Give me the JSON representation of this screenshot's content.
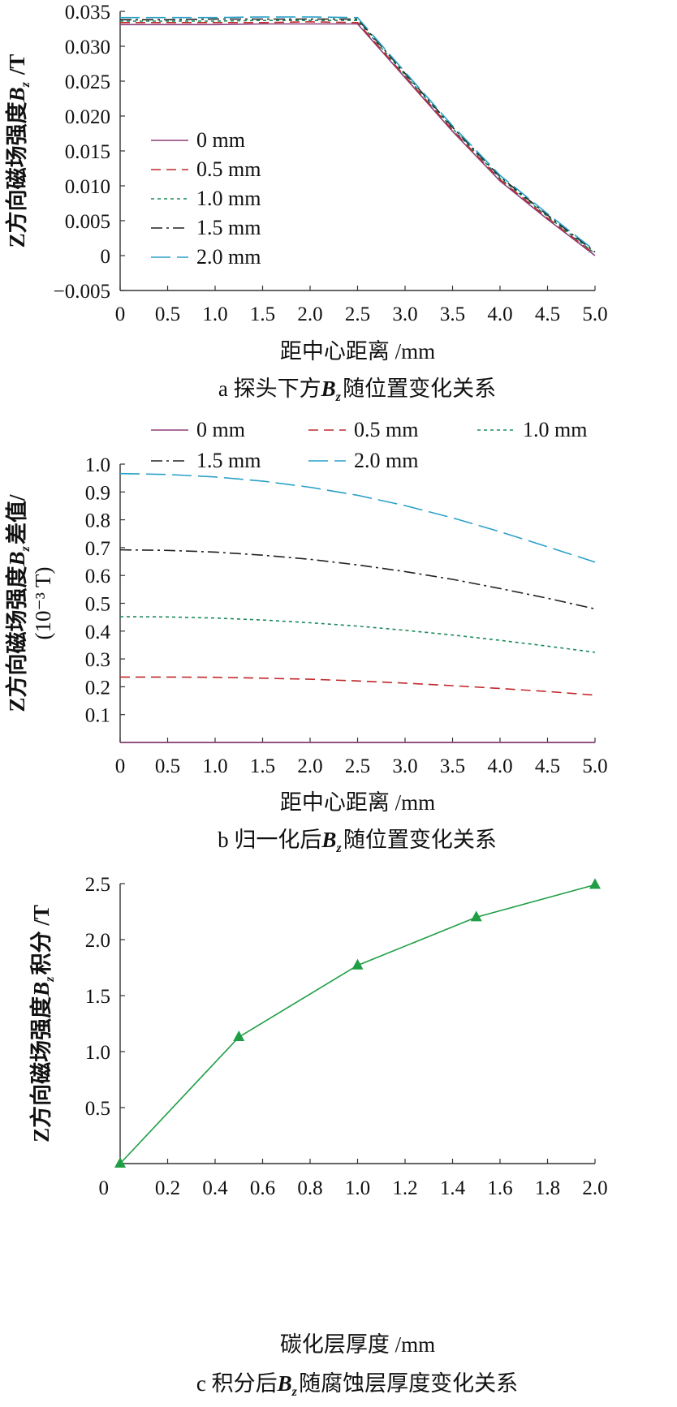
{
  "chart_data": [
    {
      "type": "line",
      "caption": "a 探头下方B_z随位置变化关系",
      "xlabel": "距中心距离 /mm",
      "ylabel": "Z方向磁场强度B_z /T",
      "xlim": [
        0,
        5
      ],
      "ylim": [
        -0.005,
        0.035
      ],
      "xticks": [
        0,
        0.5,
        1.0,
        1.5,
        2.0,
        2.5,
        3.0,
        3.5,
        4.0,
        4.5,
        5.0
      ],
      "yticks": [
        -0.005,
        0,
        0.005,
        0.01,
        0.015,
        0.02,
        0.025,
        0.03,
        0.035
      ],
      "xtick_labels": [
        "0",
        "0.5",
        "1.0",
        "1.5",
        "2.0",
        "2.5",
        "3.0",
        "3.5",
        "4.0",
        "4.5",
        "5.0"
      ],
      "ytick_labels": [
        "−0.005",
        "0",
        "0.005",
        "0.010",
        "0.015",
        "0.020",
        "0.025",
        "0.030",
        "0.035"
      ],
      "legend_position": "left",
      "series": [
        {
          "name": "0 mm",
          "color": "#8e3e7a",
          "dash": "solid",
          "x": [
            0,
            0.5,
            1.0,
            1.5,
            2.0,
            2.5,
            3.0,
            3.5,
            4.0,
            4.5,
            5.0
          ],
          "y": [
            0.0331,
            0.0331,
            0.0331,
            0.0332,
            0.0332,
            0.0332,
            0.0255,
            0.0178,
            0.0107,
            0.0052,
            0.0
          ]
        },
        {
          "name": "0.5 mm",
          "color": "#c0282b",
          "dash": "dashed",
          "x": [
            0,
            0.5,
            1.0,
            1.5,
            2.0,
            2.5,
            3.0,
            3.5,
            4.0,
            4.5,
            5.0
          ],
          "y": [
            0.0334,
            0.0334,
            0.0334,
            0.0334,
            0.0335,
            0.0334,
            0.0257,
            0.018,
            0.0109,
            0.0054,
            0.0002
          ]
        },
        {
          "name": "1.0 mm",
          "color": "#1a8a5a",
          "dash": "dotted",
          "x": [
            0,
            0.5,
            1.0,
            1.5,
            2.0,
            2.5,
            3.0,
            3.5,
            4.0,
            4.5,
            5.0
          ],
          "y": [
            0.0336,
            0.0336,
            0.0336,
            0.0337,
            0.0337,
            0.0337,
            0.0259,
            0.0182,
            0.0111,
            0.0056,
            0.0003
          ]
        },
        {
          "name": "1.5 mm",
          "color": "#222222",
          "dash": "dashdot",
          "x": [
            0,
            0.5,
            1.0,
            1.5,
            2.0,
            2.5,
            3.0,
            3.5,
            4.0,
            4.5,
            5.0
          ],
          "y": [
            0.0338,
            0.0338,
            0.0339,
            0.0339,
            0.0339,
            0.0339,
            0.0261,
            0.0184,
            0.0113,
            0.0058,
            0.0005
          ]
        },
        {
          "name": "2.0 mm",
          "color": "#2aa0c8",
          "dash": "longdash",
          "x": [
            0,
            0.5,
            1.0,
            1.5,
            2.0,
            2.5,
            3.0,
            3.5,
            4.0,
            4.5,
            5.0
          ],
          "y": [
            0.0341,
            0.0341,
            0.0341,
            0.0342,
            0.0342,
            0.0341,
            0.0263,
            0.0186,
            0.0115,
            0.006,
            0.0007
          ]
        }
      ]
    },
    {
      "type": "line",
      "caption": "b 归一化后B_z随位置变化关系",
      "xlabel": "距中心距离 /mm",
      "ylabel": "Z方向磁场强度B_z差值/ (10⁻³ T)",
      "xlim": [
        0,
        5
      ],
      "ylim": [
        0,
        1.0
      ],
      "xticks": [
        0,
        0.5,
        1.0,
        1.5,
        2.0,
        2.5,
        3.0,
        3.5,
        4.0,
        4.5,
        5.0
      ],
      "yticks": [
        0.1,
        0.2,
        0.3,
        0.4,
        0.5,
        0.6,
        0.7,
        0.8,
        0.9,
        1.0
      ],
      "xtick_labels": [
        "0",
        "0.5",
        "1.0",
        "1.5",
        "2.0",
        "2.5",
        "3.0",
        "3.5",
        "4.0",
        "4.5",
        "5.0"
      ],
      "ytick_labels": [
        "0.1",
        "0.2",
        "0.3",
        "0.4",
        "0.5",
        "0.6",
        "0.7",
        "0.8",
        "0.9",
        "1.0"
      ],
      "legend_position": "top",
      "series": [
        {
          "name": "0 mm",
          "color": "#8e3e7a",
          "dash": "solid",
          "x": [
            0,
            0.5,
            1.0,
            1.5,
            2.0,
            2.5,
            3.0,
            3.5,
            4.0,
            4.5,
            5.0
          ],
          "y": [
            0,
            0,
            0,
            0,
            0,
            0,
            0,
            0,
            0,
            0,
            0
          ]
        },
        {
          "name": "0.5 mm",
          "color": "#c0282b",
          "dash": "dashed",
          "x": [
            0,
            0.5,
            1.0,
            1.5,
            2.0,
            2.5,
            3.0,
            3.5,
            4.0,
            4.5,
            5.0
          ],
          "y": [
            0.235,
            0.235,
            0.234,
            0.231,
            0.227,
            0.221,
            0.213,
            0.204,
            0.194,
            0.183,
            0.17
          ]
        },
        {
          "name": "1.0 mm",
          "color": "#1a8a5a",
          "dash": "dotted",
          "x": [
            0,
            0.5,
            1.0,
            1.5,
            2.0,
            2.5,
            3.0,
            3.5,
            4.0,
            4.5,
            5.0
          ],
          "y": [
            0.452,
            0.451,
            0.447,
            0.44,
            0.43,
            0.418,
            0.403,
            0.386,
            0.367,
            0.346,
            0.324
          ]
        },
        {
          "name": "1.5 mm",
          "color": "#222222",
          "dash": "dashdot",
          "x": [
            0,
            0.5,
            1.0,
            1.5,
            2.0,
            2.5,
            3.0,
            3.5,
            4.0,
            4.5,
            5.0
          ],
          "y": [
            0.692,
            0.69,
            0.684,
            0.673,
            0.658,
            0.638,
            0.614,
            0.586,
            0.553,
            0.518,
            0.48
          ]
        },
        {
          "name": "2.0 mm",
          "color": "#2aa0c8",
          "dash": "longdash",
          "x": [
            0,
            0.5,
            1.0,
            1.5,
            2.0,
            2.5,
            3.0,
            3.5,
            4.0,
            4.5,
            5.0
          ],
          "y": [
            0.966,
            0.963,
            0.954,
            0.939,
            0.917,
            0.888,
            0.851,
            0.807,
            0.757,
            0.703,
            0.648
          ]
        }
      ]
    },
    {
      "type": "line",
      "caption": "c 积分后B_z随腐蚀层厚度变化关系",
      "xlabel": "碳化层厚度 /mm",
      "ylabel": "Z方向磁场强度B_z积分 /T",
      "xlim": [
        0,
        2.0
      ],
      "ylim": [
        0,
        2.5
      ],
      "xticks": [
        0,
        0.2,
        0.4,
        0.6,
        0.8,
        1.0,
        1.2,
        1.4,
        1.6,
        1.8,
        2.0
      ],
      "yticks": [
        0.5,
        1.0,
        1.5,
        2.0,
        2.5
      ],
      "xtick_labels": [
        "0",
        "0.2",
        "0.4",
        "0.6",
        "0.8",
        "1.0",
        "1.2",
        "1.4",
        "1.6",
        "1.8",
        "2.0"
      ],
      "ytick_labels": [
        "0.5",
        "1.0",
        "1.5",
        "2.0",
        "2.5"
      ],
      "series": [
        {
          "color": "#1f9e45",
          "marker": "triangle",
          "x": [
            0,
            0.5,
            1.0,
            1.5,
            2.0
          ],
          "y": [
            0.0,
            1.13,
            1.77,
            2.2,
            2.49
          ]
        }
      ]
    }
  ]
}
